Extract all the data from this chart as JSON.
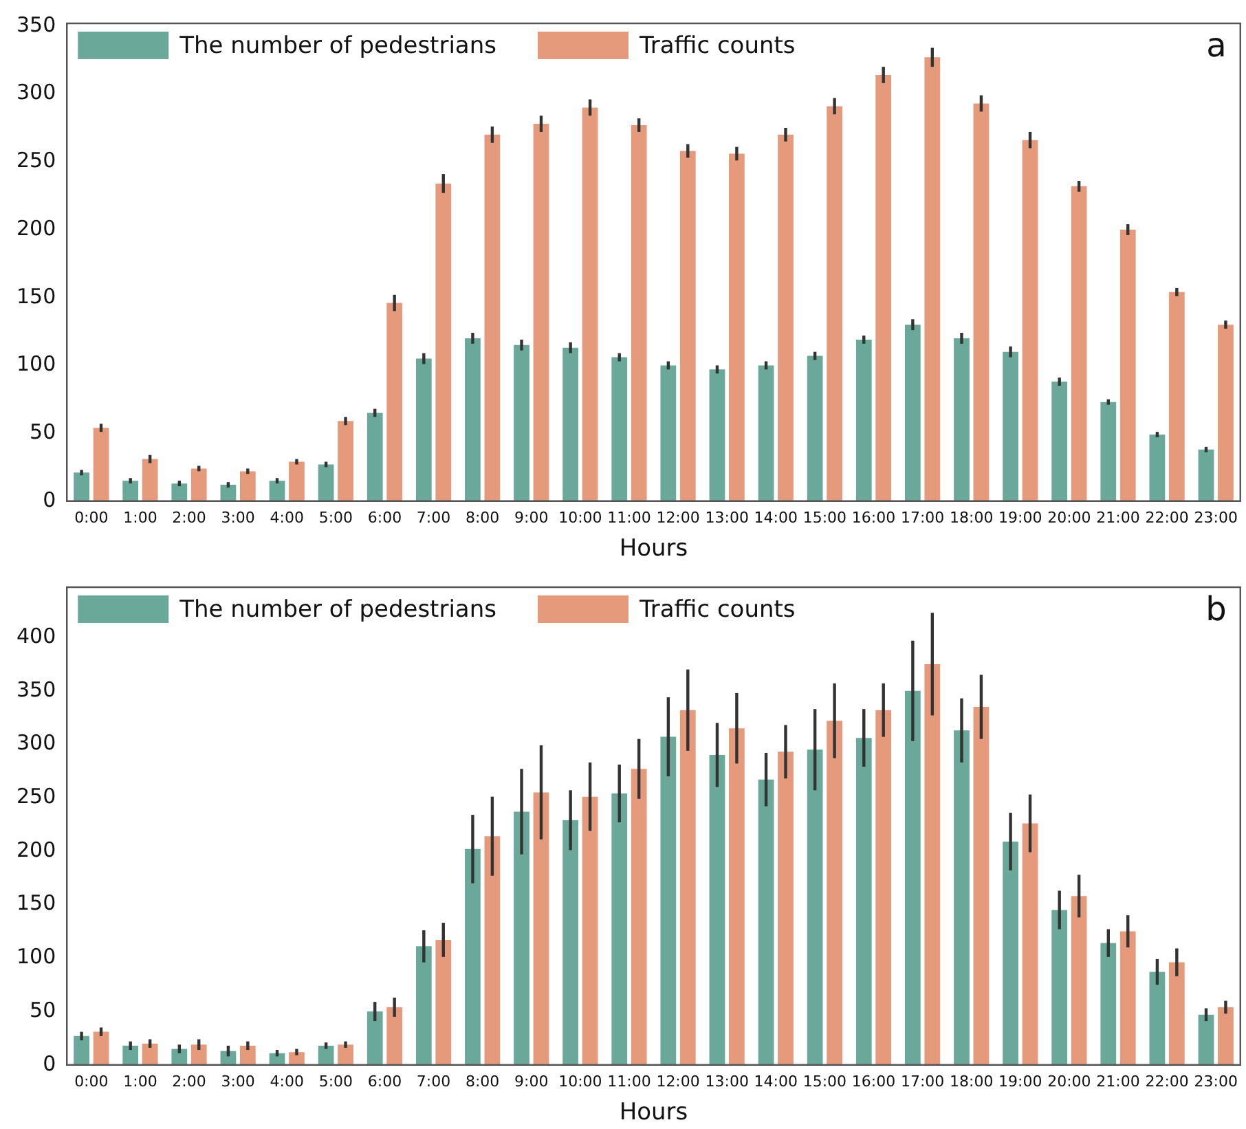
{
  "chart_data": [
    {
      "type": "bar",
      "xlabel": "Hours",
      "annotations": [
        "a"
      ],
      "legend": "top left",
      "grid": false,
      "categories": [
        "0:00",
        "1:00",
        "2:00",
        "3:00",
        "4:00",
        "5:00",
        "6:00",
        "7:00",
        "8:00",
        "9:00",
        "10:00",
        "11:00",
        "12:00",
        "13:00",
        "14:00",
        "15:00",
        "16:00",
        "17:00",
        "18:00",
        "19:00",
        "20:00",
        "21:00",
        "22:00",
        "23:00"
      ],
      "ylim": [
        0,
        352
      ],
      "yticks": [
        0,
        50,
        100,
        150,
        200,
        250,
        300,
        350
      ],
      "series": [
        {
          "name": "The number of pedestrians",
          "color": "#6aa89a",
          "values": [
            21,
            15,
            13,
            12,
            15,
            27,
            65,
            105,
            120,
            115,
            113,
            106,
            100,
            97,
            100,
            107,
            119,
            130,
            120,
            110,
            88,
            73,
            49,
            38
          ],
          "errors": [
            2,
            2,
            2,
            2,
            2,
            2,
            3,
            4,
            4,
            4,
            4,
            3,
            3,
            3,
            3,
            3,
            3,
            4,
            4,
            4,
            3,
            2,
            2,
            2
          ]
        },
        {
          "name": "Traffic counts",
          "color": "#e59a7c",
          "values": [
            54,
            31,
            24,
            22,
            29,
            59,
            146,
            234,
            270,
            278,
            290,
            277,
            258,
            256,
            270,
            291,
            314,
            327,
            293,
            266,
            232,
            200,
            154,
            130
          ],
          "errors": [
            3,
            3,
            2,
            2,
            2,
            3,
            6,
            7,
            6,
            6,
            6,
            5,
            5,
            5,
            5,
            6,
            6,
            7,
            6,
            6,
            4,
            4,
            3,
            3
          ]
        }
      ]
    },
    {
      "type": "bar",
      "xlabel": "Hours",
      "annotations": [
        "b"
      ],
      "legend": "top left",
      "grid": false,
      "categories": [
        "0:00",
        "1:00",
        "2:00",
        "3:00",
        "4:00",
        "5:00",
        "6:00",
        "7:00",
        "8:00",
        "9:00",
        "10:00",
        "11:00",
        "12:00",
        "13:00",
        "14:00",
        "15:00",
        "16:00",
        "17:00",
        "18:00",
        "19:00",
        "20:00",
        "21:00",
        "22:00",
        "23:00"
      ],
      "ylim": [
        0,
        447
      ],
      "yticks": [
        0,
        50,
        100,
        150,
        200,
        250,
        300,
        350,
        400
      ],
      "series": [
        {
          "name": "The number of pedestrians",
          "color": "#6aa89a",
          "values": [
            27,
            18,
            15,
            13,
            11,
            18,
            50,
            111,
            202,
            237,
            229,
            254,
            307,
            290,
            267,
            295,
            306,
            350,
            313,
            209,
            145,
            114,
            87,
            47
          ],
          "errors": [
            4,
            4,
            4,
            5,
            3,
            3,
            9,
            15,
            32,
            40,
            28,
            27,
            37,
            30,
            25,
            38,
            27,
            47,
            30,
            27,
            18,
            13,
            12,
            6
          ]
        },
        {
          "name": "Traffic counts",
          "color": "#e59a7c",
          "values": [
            31,
            20,
            19,
            18,
            12,
            19,
            54,
            117,
            214,
            255,
            251,
            277,
            332,
            315,
            293,
            322,
            332,
            375,
            335,
            226,
            158,
            125,
            96,
            54
          ],
          "errors": [
            4,
            4,
            5,
            4,
            3,
            3,
            9,
            16,
            37,
            44,
            32,
            28,
            38,
            33,
            25,
            35,
            25,
            48,
            30,
            27,
            20,
            15,
            13,
            6
          ]
        }
      ]
    }
  ]
}
